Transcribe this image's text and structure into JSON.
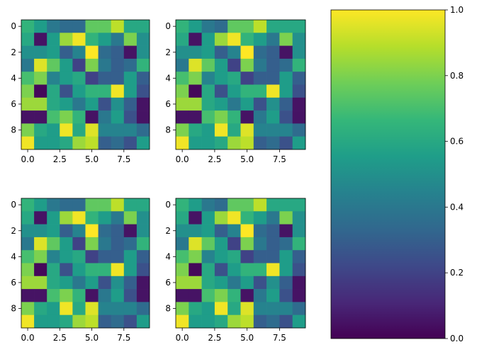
{
  "chart_data": [
    {
      "type": "heatmap",
      "title": "",
      "xlabel": "",
      "ylabel": "",
      "xlim": [
        -0.5,
        9.5
      ],
      "ylim": [
        9.5,
        -0.5
      ],
      "x_ticks": [
        0,
        2.5,
        5,
        7.5
      ],
      "x_tick_labels": [
        "0.0",
        "2.5",
        "5.0",
        "7.5"
      ],
      "y_ticks": [
        0,
        2,
        4,
        6,
        8
      ],
      "y_tick_labels": [
        "0",
        "2",
        "4",
        "6",
        "8"
      ],
      "colormap": "viridis",
      "vmin": 0,
      "vmax": 1,
      "values": [
        [
          0.65,
          0.55,
          0.4,
          0.35,
          0.35,
          0.75,
          0.75,
          0.9,
          0.6,
          0.6
        ],
        [
          0.6,
          0.05,
          0.55,
          0.85,
          0.98,
          0.65,
          0.55,
          0.4,
          0.8,
          0.5
        ],
        [
          0.5,
          0.5,
          0.55,
          0.3,
          0.45,
          1.0,
          0.35,
          0.3,
          0.05,
          0.5
        ],
        [
          0.4,
          0.95,
          0.75,
          0.55,
          0.2,
          0.8,
          0.4,
          0.3,
          0.35,
          0.65
        ],
        [
          0.7,
          0.8,
          0.45,
          0.55,
          0.6,
          0.2,
          0.3,
          0.3,
          0.55,
          0.3
        ],
        [
          0.8,
          0.02,
          0.6,
          0.25,
          0.55,
          0.65,
          0.65,
          0.98,
          0.55,
          0.25
        ],
        [
          0.85,
          0.85,
          0.6,
          0.55,
          0.4,
          0.55,
          0.25,
          0.5,
          0.3,
          0.05
        ],
        [
          0.05,
          0.05,
          0.7,
          0.8,
          0.65,
          0.05,
          0.4,
          0.55,
          0.25,
          0.05
        ],
        [
          0.8,
          0.6,
          0.55,
          0.98,
          0.6,
          0.95,
          0.45,
          0.45,
          0.45,
          0.35
        ],
        [
          0.98,
          0.55,
          0.55,
          0.6,
          0.85,
          0.9,
          0.3,
          0.35,
          0.25,
          0.55
        ]
      ]
    },
    {
      "type": "heatmap",
      "title": "",
      "xlabel": "",
      "ylabel": "",
      "xlim": [
        -0.5,
        9.5
      ],
      "ylim": [
        9.5,
        -0.5
      ],
      "x_ticks": [
        0,
        2.5,
        5,
        7.5
      ],
      "x_tick_labels": [
        "0.0",
        "2.5",
        "5.0",
        "7.5"
      ],
      "y_ticks": [
        0,
        2,
        4,
        6,
        8
      ],
      "y_tick_labels": [
        "0",
        "2",
        "4",
        "6",
        "8"
      ],
      "colormap": "viridis",
      "vmin": 0,
      "vmax": 1,
      "values": [
        [
          0.65,
          0.55,
          0.4,
          0.35,
          0.75,
          0.75,
          0.9,
          0.6,
          0.6,
          0.6
        ],
        [
          0.6,
          0.05,
          0.55,
          0.85,
          0.98,
          0.65,
          0.55,
          0.4,
          0.8,
          0.5
        ],
        [
          0.5,
          0.5,
          0.55,
          0.3,
          0.45,
          1.0,
          0.35,
          0.3,
          0.05,
          0.5
        ],
        [
          0.4,
          0.95,
          0.75,
          0.55,
          0.2,
          0.8,
          0.4,
          0.3,
          0.35,
          0.65
        ],
        [
          0.7,
          0.8,
          0.45,
          0.55,
          0.6,
          0.2,
          0.3,
          0.3,
          0.55,
          0.3
        ],
        [
          0.8,
          0.02,
          0.6,
          0.25,
          0.55,
          0.65,
          0.65,
          0.98,
          0.55,
          0.25
        ],
        [
          0.85,
          0.85,
          0.6,
          0.55,
          0.4,
          0.55,
          0.25,
          0.5,
          0.3,
          0.05
        ],
        [
          0.05,
          0.05,
          0.7,
          0.8,
          0.65,
          0.05,
          0.4,
          0.55,
          0.25,
          0.05
        ],
        [
          0.8,
          0.6,
          0.55,
          0.98,
          0.6,
          0.95,
          0.45,
          0.45,
          0.45,
          0.35
        ],
        [
          0.98,
          0.55,
          0.55,
          0.6,
          0.85,
          0.9,
          0.3,
          0.35,
          0.25,
          0.55
        ]
      ]
    },
    {
      "type": "heatmap",
      "title": "",
      "xlabel": "",
      "ylabel": "",
      "xlim": [
        -0.5,
        9.5
      ],
      "ylim": [
        9.5,
        -0.5
      ],
      "x_ticks": [
        0,
        2.5,
        5,
        7.5
      ],
      "x_tick_labels": [
        "0.0",
        "2.5",
        "5.0",
        "7.5"
      ],
      "y_ticks": [
        0,
        2,
        4,
        6,
        8
      ],
      "y_tick_labels": [
        "0",
        "2",
        "4",
        "6",
        "8"
      ],
      "colormap": "viridis",
      "vmin": 0,
      "vmax": 1,
      "values": [
        [
          0.65,
          0.55,
          0.4,
          0.35,
          0.35,
          0.75,
          0.75,
          0.9,
          0.6,
          0.6
        ],
        [
          0.6,
          0.05,
          0.55,
          0.85,
          0.98,
          0.65,
          0.55,
          0.4,
          0.8,
          0.5
        ],
        [
          0.5,
          0.5,
          0.55,
          0.3,
          0.45,
          1.0,
          0.35,
          0.3,
          0.05,
          0.5
        ],
        [
          0.4,
          0.95,
          0.75,
          0.55,
          0.2,
          0.8,
          0.4,
          0.3,
          0.35,
          0.65
        ],
        [
          0.7,
          0.8,
          0.45,
          0.55,
          0.6,
          0.2,
          0.3,
          0.3,
          0.55,
          0.3
        ],
        [
          0.8,
          0.02,
          0.6,
          0.25,
          0.55,
          0.65,
          0.65,
          0.98,
          0.55,
          0.25
        ],
        [
          0.85,
          0.85,
          0.6,
          0.55,
          0.4,
          0.55,
          0.25,
          0.5,
          0.3,
          0.05
        ],
        [
          0.05,
          0.05,
          0.7,
          0.8,
          0.65,
          0.05,
          0.4,
          0.55,
          0.25,
          0.05
        ],
        [
          0.8,
          0.6,
          0.55,
          0.98,
          0.6,
          0.95,
          0.45,
          0.45,
          0.45,
          0.35
        ],
        [
          0.98,
          0.55,
          0.55,
          0.6,
          0.85,
          0.9,
          0.3,
          0.35,
          0.25,
          0.55
        ]
      ]
    },
    {
      "type": "heatmap",
      "title": "",
      "xlabel": "",
      "ylabel": "",
      "xlim": [
        -0.5,
        9.5
      ],
      "ylim": [
        9.5,
        -0.5
      ],
      "x_ticks": [
        0,
        2.5,
        5,
        7.5
      ],
      "x_tick_labels": [
        "0.0",
        "2.5",
        "5.0",
        "7.5"
      ],
      "y_ticks": [
        0,
        2,
        4,
        6,
        8
      ],
      "y_tick_labels": [
        "0",
        "2",
        "4",
        "6",
        "8"
      ],
      "colormap": "viridis",
      "vmin": 0,
      "vmax": 1,
      "values": [
        [
          0.65,
          0.55,
          0.4,
          0.35,
          0.75,
          0.75,
          0.9,
          0.6,
          0.6,
          0.6
        ],
        [
          0.6,
          0.05,
          0.55,
          0.85,
          0.98,
          0.65,
          0.55,
          0.4,
          0.8,
          0.5
        ],
        [
          0.5,
          0.5,
          0.55,
          0.3,
          0.45,
          1.0,
          0.35,
          0.3,
          0.05,
          0.5
        ],
        [
          0.4,
          0.95,
          0.75,
          0.55,
          0.2,
          0.8,
          0.4,
          0.3,
          0.35,
          0.65
        ],
        [
          0.7,
          0.8,
          0.45,
          0.55,
          0.6,
          0.2,
          0.3,
          0.3,
          0.55,
          0.3
        ],
        [
          0.8,
          0.02,
          0.6,
          0.25,
          0.55,
          0.65,
          0.65,
          0.98,
          0.55,
          0.25
        ],
        [
          0.85,
          0.85,
          0.6,
          0.55,
          0.4,
          0.55,
          0.25,
          0.5,
          0.3,
          0.05
        ],
        [
          0.05,
          0.05,
          0.7,
          0.8,
          0.65,
          0.05,
          0.4,
          0.55,
          0.25,
          0.05
        ],
        [
          0.8,
          0.6,
          0.55,
          0.98,
          0.6,
          0.95,
          0.45,
          0.45,
          0.45,
          0.35
        ],
        [
          0.98,
          0.55,
          0.55,
          0.6,
          0.85,
          0.9,
          0.3,
          0.35,
          0.25,
          0.55
        ]
      ]
    }
  ],
  "colorbar": {
    "colormap": "viridis",
    "range": [
      0,
      1
    ],
    "ticks": [
      0,
      0.2,
      0.4,
      0.6,
      0.8,
      1
    ],
    "tick_labels": [
      "0.0",
      "0.2",
      "0.4",
      "0.6",
      "0.8",
      "1.0"
    ],
    "colors": [
      "#440154",
      "#482878",
      "#3e4989",
      "#31688e",
      "#26828e",
      "#1f9e89",
      "#35b779",
      "#6ece58",
      "#b5de2b",
      "#fde725"
    ]
  }
}
